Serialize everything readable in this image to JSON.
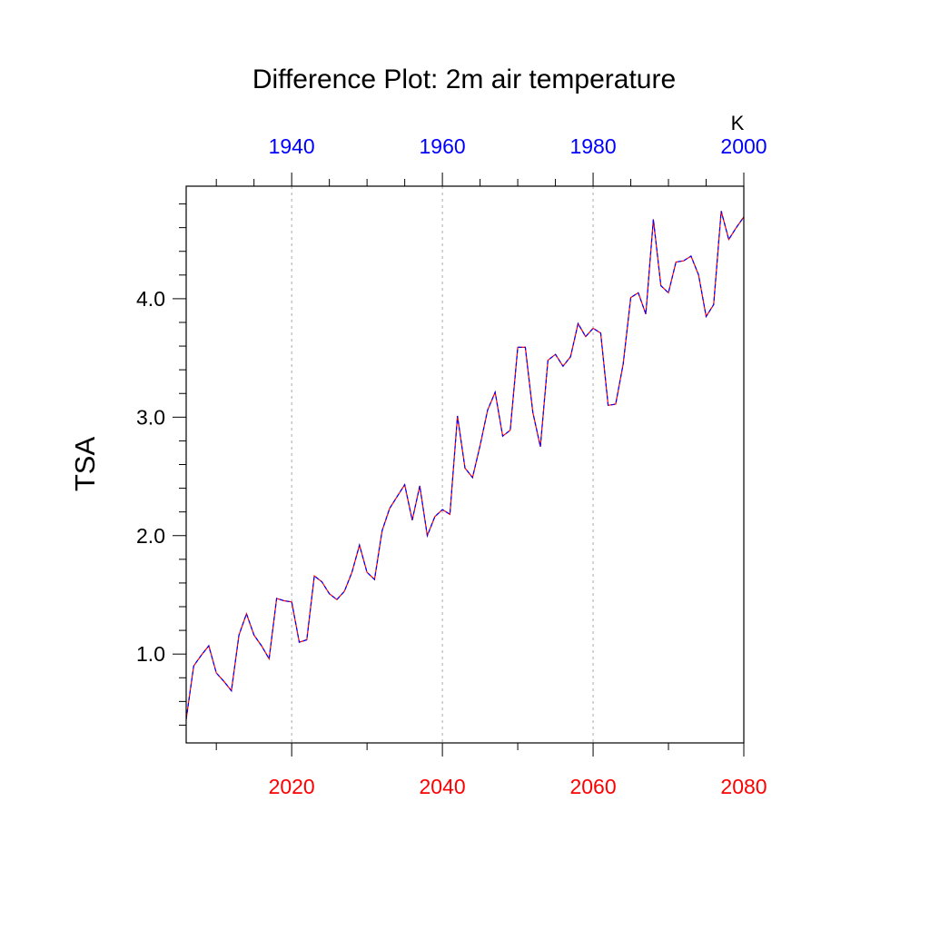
{
  "chart_data": {
    "type": "line",
    "title": "Difference Plot: 2m air temperature",
    "ylabel": "TSA",
    "units": "K",
    "xlim": [
      2006,
      2080
    ],
    "ylim": [
      0.25,
      4.95
    ],
    "grid": "vertical dotted lines at bottom-axis major ticks",
    "colors": {
      "bottom_axis": "#ff0000",
      "top_axis": "#0000ff",
      "line_a": "#ff0000",
      "line_b": "#0000ff",
      "grid": "#aaaaaa"
    },
    "bottom_axis": {
      "ticks": [
        2020,
        2040,
        2060,
        2080
      ],
      "tick_labels": [
        "2020",
        "2040",
        "2060",
        "2080"
      ],
      "minor_ticks": [
        2010,
        2030,
        2050,
        2070
      ]
    },
    "top_axis": {
      "ticks": [
        1940,
        1960,
        1980,
        2000
      ],
      "tick_labels": [
        "1940",
        "1960",
        "1980",
        "2000"
      ],
      "offset_years": 80,
      "minor_ticks": [
        1930,
        1935,
        1945,
        1950,
        1955,
        1965,
        1970,
        1975,
        1985,
        1990,
        1995,
        2005
      ]
    },
    "left_axis": {
      "ticks": [
        1.0,
        2.0,
        3.0,
        4.0
      ],
      "tick_labels": [
        "1.0",
        "2.0",
        "3.0",
        "4.0"
      ],
      "minor_ticks": [
        0.4,
        0.6,
        0.8,
        1.2,
        1.4,
        1.6,
        1.8,
        2.2,
        2.4,
        2.6,
        2.8,
        3.2,
        3.4,
        3.6,
        3.8,
        4.2,
        4.4,
        4.6,
        4.8
      ]
    },
    "x": [
      2006,
      2007,
      2008,
      2009,
      2010,
      2011,
      2012,
      2013,
      2014,
      2015,
      2016,
      2017,
      2018,
      2019,
      2020,
      2021,
      2022,
      2023,
      2024,
      2025,
      2026,
      2027,
      2028,
      2029,
      2030,
      2031,
      2032,
      2033,
      2034,
      2035,
      2036,
      2037,
      2038,
      2039,
      2040,
      2041,
      2042,
      2043,
      2044,
      2045,
      2046,
      2047,
      2048,
      2049,
      2050,
      2051,
      2052,
      2053,
      2054,
      2055,
      2056,
      2057,
      2058,
      2059,
      2060,
      2061,
      2062,
      2063,
      2064,
      2065,
      2066,
      2067,
      2068,
      2069,
      2070,
      2071,
      2072,
      2073,
      2074,
      2075,
      2076,
      2077,
      2078,
      2079,
      2080
    ],
    "series": [
      {
        "values": [
          0.45,
          0.9,
          0.99,
          1.07,
          0.84,
          0.77,
          0.69,
          1.16,
          1.34,
          1.16,
          1.07,
          0.96,
          1.47,
          1.45,
          1.44,
          1.1,
          1.12,
          1.66,
          1.61,
          1.51,
          1.46,
          1.53,
          1.69,
          1.92,
          1.69,
          1.63,
          2.04,
          2.23,
          2.33,
          2.43,
          2.13,
          2.42,
          2.0,
          2.16,
          2.22,
          2.18,
          3.01,
          2.57,
          2.49,
          2.76,
          3.06,
          3.21,
          2.84,
          2.89,
          3.59,
          3.59,
          3.04,
          2.75,
          3.48,
          3.53,
          3.43,
          3.51,
          3.79,
          3.68,
          3.75,
          3.71,
          3.1,
          3.11,
          3.45,
          4.01,
          4.05,
          3.87,
          4.67,
          4.11,
          4.05,
          4.31,
          4.32,
          4.36,
          4.2,
          3.85,
          3.95,
          4.74,
          4.5,
          4.6,
          4.69
        ]
      }
    ]
  }
}
